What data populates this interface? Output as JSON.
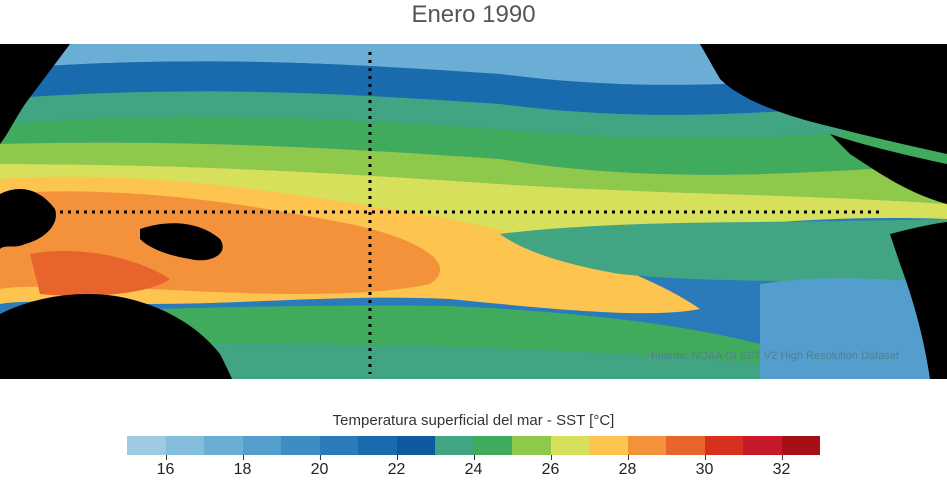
{
  "title": "Enero 1990",
  "source": "Fuente: NOAA OI SST V2 High Resolution Dataset",
  "legend": {
    "title": "Temperatura superficial del mar - SST  [°C]",
    "min": 15,
    "max": 33,
    "step": 1,
    "colors": [
      "#9ecae1",
      "#84bcdc",
      "#6aaed6",
      "#539ecd",
      "#3d8dc4",
      "#2b7bba",
      "#1a6aae",
      "#0f5a9e",
      "#41a584",
      "#41ab5d",
      "#8ec94b",
      "#d7e05a",
      "#fdc44f",
      "#f3923a",
      "#e8642d",
      "#d7301f",
      "#c8192a",
      "#a50f15"
    ],
    "ticks": [
      16,
      18,
      20,
      22,
      24,
      26,
      28,
      30,
      32
    ]
  }
}
